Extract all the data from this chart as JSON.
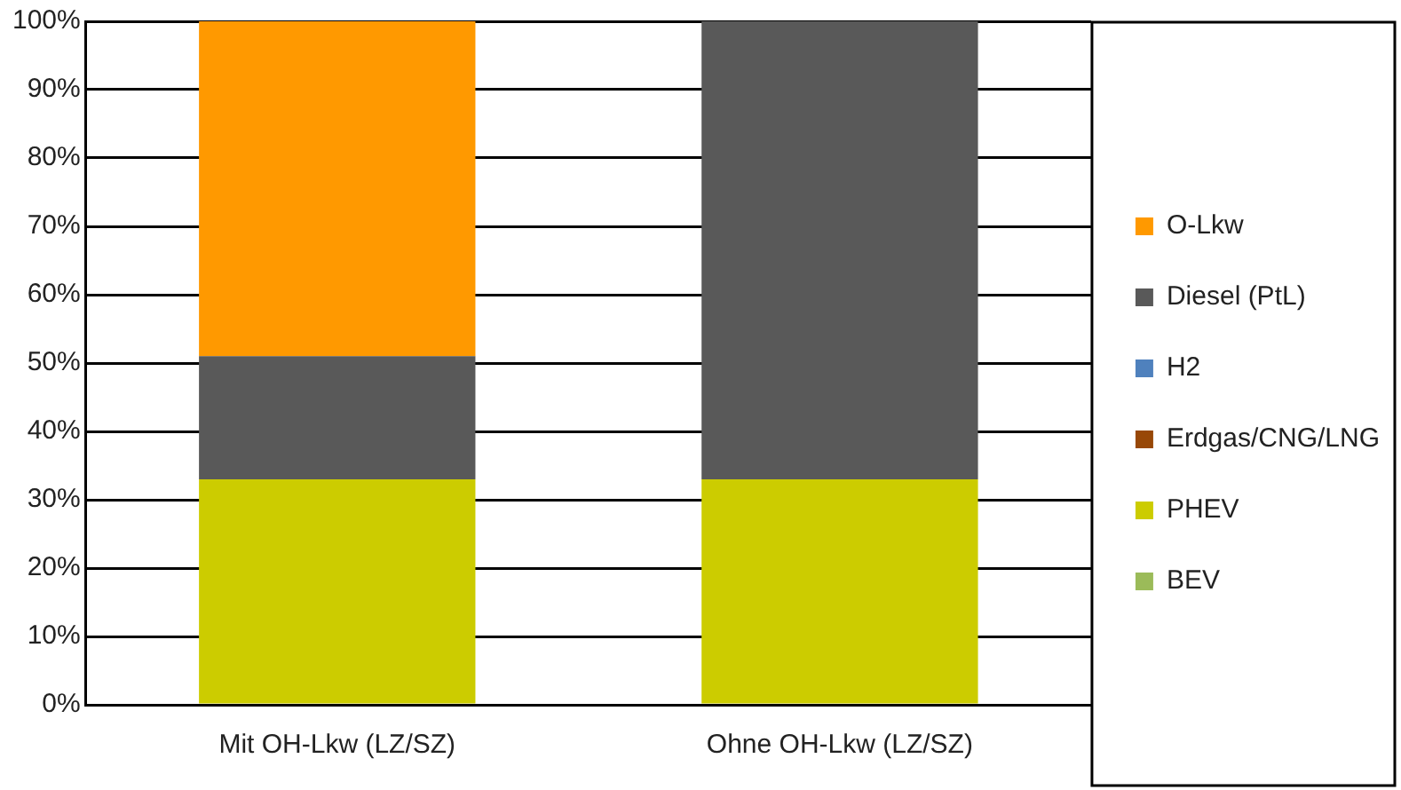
{
  "chart_data": {
    "type": "bar",
    "stacked": true,
    "categories": [
      "Mit OH-Lkw (LZ/SZ)",
      "Ohne OH-Lkw (LZ/SZ)"
    ],
    "series": [
      {
        "name": "BEV",
        "color": "#9bbb59",
        "values": [
          0,
          0
        ]
      },
      {
        "name": "PHEV",
        "color": "#cccc00",
        "values": [
          33,
          33
        ]
      },
      {
        "name": "Erdgas/CNG/LNG",
        "color": "#984807",
        "values": [
          0,
          0
        ]
      },
      {
        "name": "H2",
        "color": "#4f81bd",
        "values": [
          0,
          0
        ]
      },
      {
        "name": "Diesel (PtL)",
        "color": "#595959",
        "values": [
          18,
          67
        ]
      },
      {
        "name": "O-Lkw",
        "color": "#ff9900",
        "values": [
          49,
          0
        ]
      }
    ],
    "ylim": [
      0,
      100
    ],
    "yticks": [
      {
        "value": 0,
        "label": "0%"
      },
      {
        "value": 10,
        "label": "10%"
      },
      {
        "value": 20,
        "label": "20%"
      },
      {
        "value": 30,
        "label": "30%"
      },
      {
        "value": 40,
        "label": "40%"
      },
      {
        "value": 50,
        "label": "50%"
      },
      {
        "value": 60,
        "label": "60%"
      },
      {
        "value": 70,
        "label": "70%"
      },
      {
        "value": 80,
        "label": "80%"
      },
      {
        "value": 90,
        "label": "90%"
      },
      {
        "value": 100,
        "label": "100%"
      }
    ],
    "grid": "y",
    "legend": "right"
  }
}
